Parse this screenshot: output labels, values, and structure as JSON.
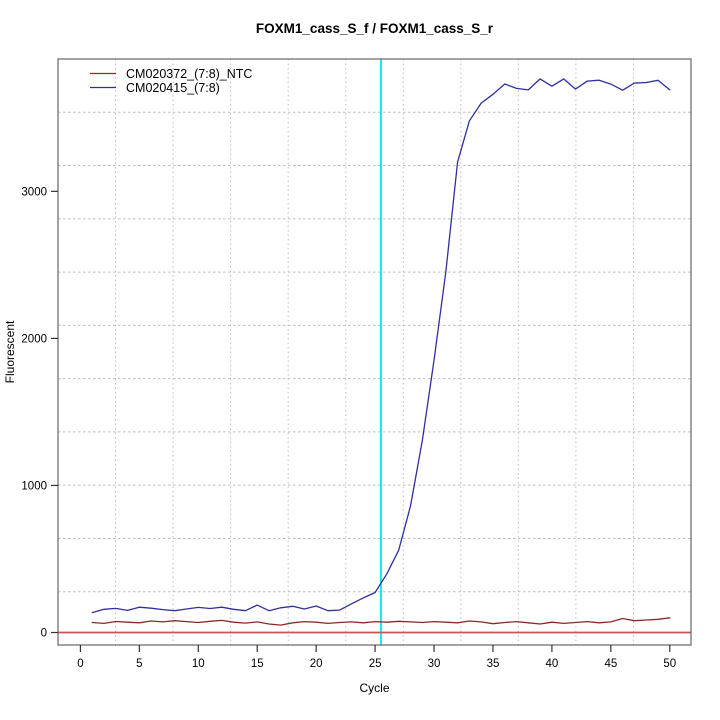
{
  "chart_data": {
    "type": "line",
    "title": "FOXM1_cass_S_f / FOXM1_cass_S_r",
    "xlabel": "Cycle",
    "ylabel": "Fluorescent",
    "xlim": [
      -1.9,
      51.8
    ],
    "ylim": [
      -85,
      3900
    ],
    "xticks": [
      0,
      5,
      10,
      15,
      20,
      25,
      30,
      35,
      40,
      45,
      50
    ],
    "yticks": [
      0,
      1000,
      2000,
      3000
    ],
    "grid": {
      "nx": 11,
      "ny": 11,
      "on": true,
      "color": "#bdbdbd"
    },
    "legend_position": "top-left",
    "threshold_vline": {
      "x": 25.5,
      "color": "#00e8ee"
    },
    "zero_hline": {
      "y": 0,
      "color": "#c25656"
    },
    "x": [
      1,
      2,
      3,
      4,
      5,
      6,
      7,
      8,
      9,
      10,
      11,
      12,
      13,
      14,
      15,
      16,
      17,
      18,
      19,
      20,
      21,
      22,
      23,
      24,
      25,
      26,
      27,
      28,
      29,
      30,
      31,
      32,
      33,
      34,
      35,
      36,
      37,
      38,
      39,
      40,
      41,
      42,
      43,
      44,
      45,
      46,
      47,
      48,
      49,
      50
    ],
    "series": [
      {
        "name": "CM020372_(7:8)_NTC",
        "color": "#8f2727",
        "values": [
          68,
          62,
          75,
          70,
          66,
          78,
          72,
          80,
          74,
          68,
          76,
          82,
          70,
          64,
          72,
          58,
          50,
          66,
          74,
          70,
          62,
          68,
          72,
          66,
          74,
          70,
          76,
          72,
          68,
          74,
          70,
          66,
          78,
          72,
          60,
          68,
          74,
          66,
          58,
          70,
          62,
          68,
          74,
          66,
          72,
          95,
          80,
          85,
          90,
          100
        ]
      },
      {
        "name": "CM020415_(7:8)",
        "color": "#30309c",
        "values": [
          135,
          158,
          164,
          150,
          172,
          165,
          156,
          148,
          160,
          171,
          163,
          172,
          158,
          148,
          186,
          148,
          168,
          178,
          160,
          180,
          148,
          152,
          195,
          235,
          272,
          400,
          560,
          860,
          1300,
          1850,
          2450,
          3200,
          3480,
          3600,
          3660,
          3730,
          3700,
          3690,
          3765,
          3715,
          3765,
          3695,
          3750,
          3756,
          3729,
          3688,
          3736,
          3740,
          3755,
          3690
        ]
      }
    ]
  }
}
